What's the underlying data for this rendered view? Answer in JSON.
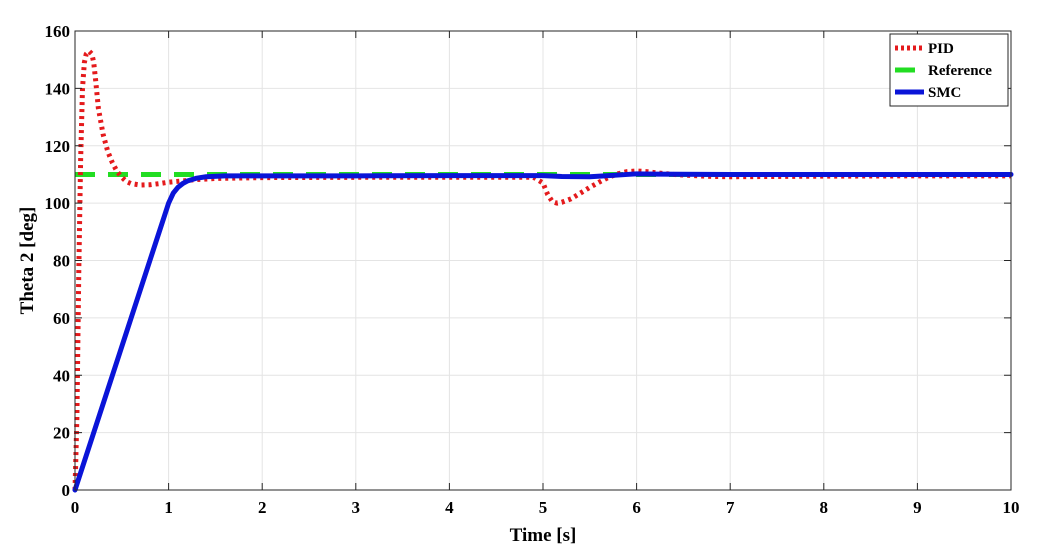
{
  "chart_data": {
    "type": "line",
    "title": "",
    "xlabel": "Time [s]",
    "ylabel": "Theta 2 [deg]",
    "xlim": [
      0,
      10
    ],
    "ylim": [
      0,
      160
    ],
    "xticks": [
      0,
      1,
      2,
      3,
      4,
      5,
      6,
      7,
      8,
      9,
      10
    ],
    "yticks": [
      0,
      20,
      40,
      60,
      80,
      100,
      120,
      140,
      160
    ],
    "grid": true,
    "legend_position": "top-right",
    "series": [
      {
        "name": "PID",
        "color": "#e41a1c",
        "style": "dotted",
        "x": [
          0,
          0.02,
          0.04,
          0.06,
          0.08,
          0.1,
          0.12,
          0.15,
          0.18,
          0.2,
          0.22,
          0.25,
          0.3,
          0.35,
          0.4,
          0.45,
          0.5,
          0.55,
          0.6,
          0.7,
          0.8,
          0.9,
          1.0,
          1.1,
          1.2,
          1.3,
          1.5,
          2.0,
          3.0,
          4.0,
          4.9,
          5.0,
          5.05,
          5.1,
          5.15,
          5.2,
          5.3,
          5.4,
          5.5,
          5.6,
          5.7,
          5.8,
          5.9,
          6.0,
          6.1,
          6.2,
          6.4,
          6.6,
          6.8,
          7.0,
          7.5,
          8.0,
          9.0,
          10.0
        ],
        "y": [
          0,
          25,
          75,
          115,
          140,
          149,
          152,
          153,
          152,
          149,
          143,
          133,
          124,
          118,
          114,
          111,
          109,
          107.5,
          106.8,
          106.3,
          106.4,
          106.8,
          107.3,
          107.6,
          107.9,
          108.2,
          108.6,
          108.9,
          109.0,
          109.0,
          109.0,
          107,
          103,
          100.5,
          100.0,
          100.3,
          101.5,
          103.5,
          105.5,
          107.3,
          109.0,
          110.2,
          111.0,
          111.2,
          111.0,
          110.6,
          110.0,
          109.6,
          109.3,
          109.2,
          109.3,
          109.4,
          109.5,
          109.5
        ]
      },
      {
        "name": "Reference",
        "color": "#22dd22",
        "style": "dashed",
        "x": [
          0,
          10
        ],
        "y": [
          110,
          110
        ]
      },
      {
        "name": "SMC",
        "color": "#0a14d8",
        "style": "solid",
        "x": [
          0,
          0.2,
          0.4,
          0.6,
          0.8,
          0.9,
          0.95,
          1.0,
          1.05,
          1.1,
          1.15,
          1.2,
          1.3,
          1.4,
          1.6,
          1.8,
          2.0,
          3.0,
          4.0,
          5.0,
          5.2,
          5.5,
          5.7,
          5.9,
          6.0,
          6.2,
          7.0,
          8.0,
          9.0,
          10.0
        ],
        "y": [
          0,
          20,
          40,
          60,
          80,
          90,
          95,
          100,
          103.5,
          105.5,
          106.8,
          107.7,
          108.7,
          109.2,
          109.5,
          109.5,
          109.5,
          109.5,
          109.6,
          109.6,
          109.3,
          109.2,
          109.6,
          110.0,
          110.2,
          110.1,
          110.0,
          110.0,
          110.0,
          110.0
        ]
      }
    ]
  }
}
